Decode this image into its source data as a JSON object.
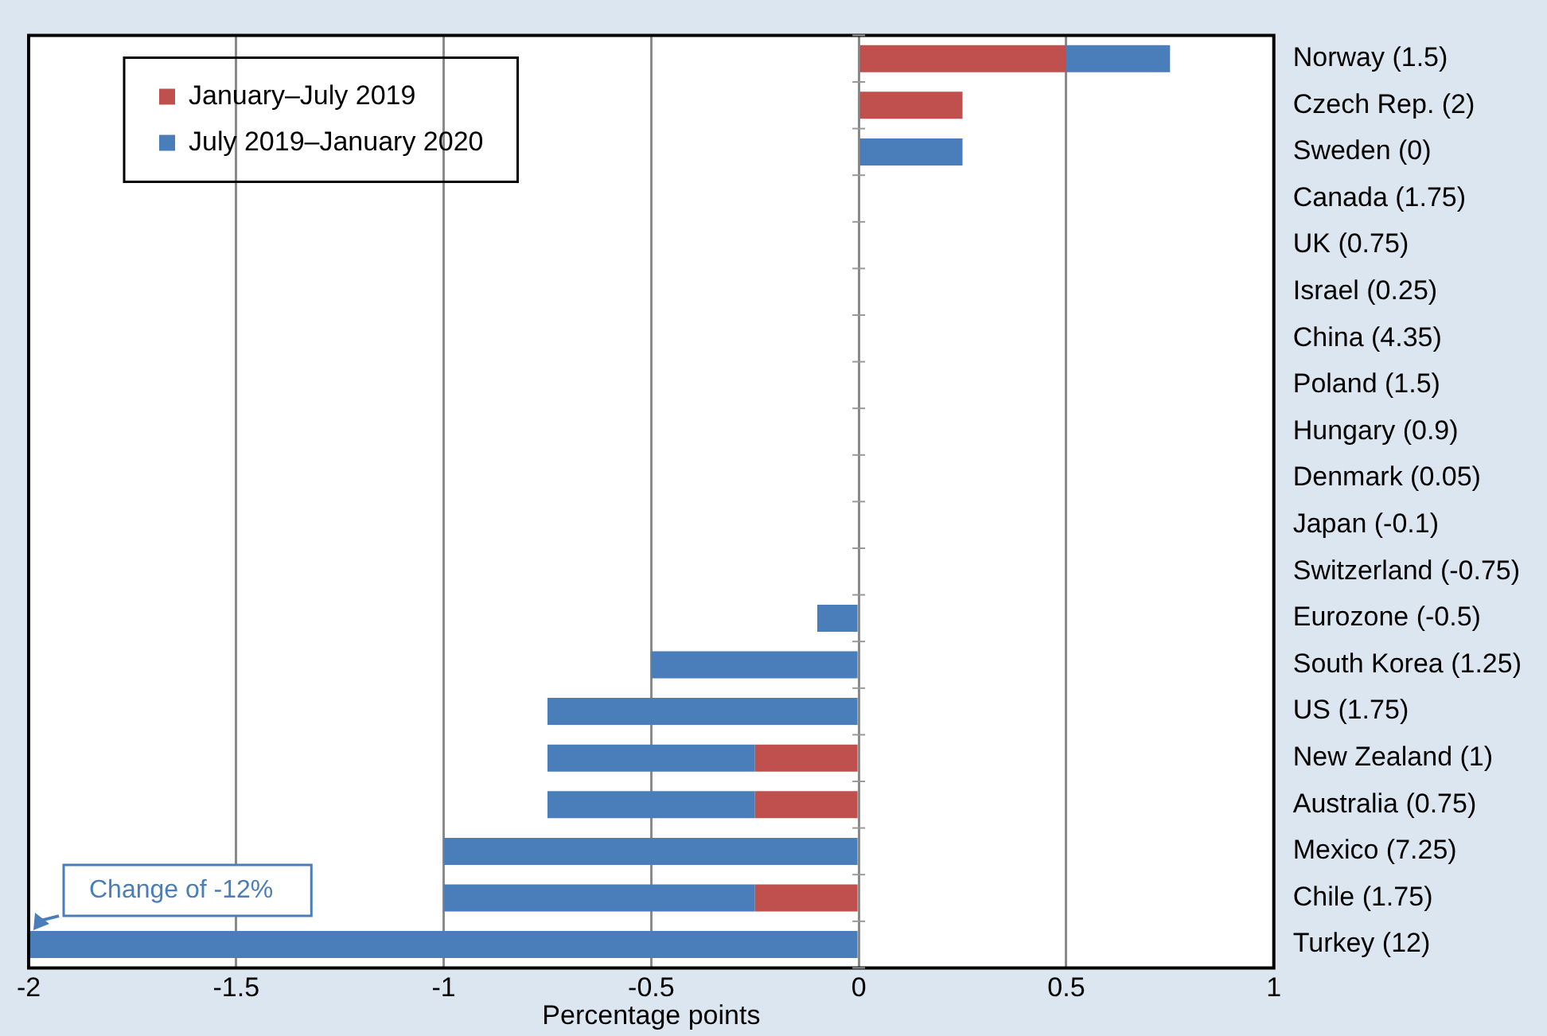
{
  "chart_data": {
    "type": "bar",
    "orientation": "horizontal",
    "stacked": true,
    "categories": [
      "Norway (1.5)",
      "Czech Rep. (2)",
      "Sweden (0)",
      "Canada (1.75)",
      "UK (0.75)",
      "Israel (0.25)",
      "China (4.35)",
      "Poland (1.5)",
      "Hungary (0.9)",
      "Denmark (0.05)",
      "Japan (-0.1)",
      "Switzerland (-0.75)",
      "Eurozone (-0.5)",
      "South Korea (1.25)",
      "US (1.75)",
      "New Zealand (1)",
      "Australia (0.75)",
      "Mexico (7.25)",
      "Chile (1.75)",
      "Turkey (12)"
    ],
    "series": [
      {
        "name": "January–July 2019",
        "color": "#c0504d",
        "values": [
          0.5,
          0.25,
          0,
          0,
          0,
          0,
          0,
          0,
          0,
          0,
          0,
          0,
          0,
          0,
          0,
          -0.25,
          -0.25,
          0,
          -0.25,
          0
        ]
      },
      {
        "name": "July 2019–January 2020",
        "color": "#4a7ebb",
        "values": [
          0.25,
          0,
          0.25,
          0,
          0,
          0,
          0,
          0,
          0,
          0,
          0,
          0,
          -0.1,
          -0.5,
          -0.75,
          -0.5,
          -0.5,
          -1,
          -0.75,
          -2
        ]
      }
    ],
    "xlabel": "Percentage points",
    "xlim": [
      -2,
      1
    ],
    "xticks": [
      -2,
      -1.5,
      -1,
      -0.5,
      0,
      0.5,
      1
    ],
    "grid": "x",
    "legend": "top left",
    "annotations": [
      {
        "text": "Change of -12%",
        "x": -2,
        "y": "Turkey (12)"
      }
    ]
  }
}
